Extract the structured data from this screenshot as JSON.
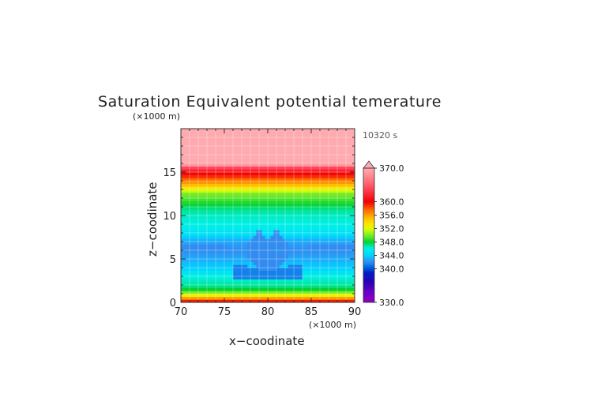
{
  "title": "Saturation Equivalent potential temerature",
  "time_label": "10320 s",
  "chart_data": {
    "type": "heatmap",
    "title": "Saturation Equivalent potential temerature",
    "xlabel": "x−coodinate",
    "ylabel": "z−coodinate",
    "x_unit": "(×1000 m)",
    "y_unit": "(×1000 m)",
    "xlim": [
      70,
      90
    ],
    "ylim": [
      0,
      20
    ],
    "x_ticks": [
      "70",
      "75",
      "80",
      "85",
      "90"
    ],
    "y_ticks": [
      "0",
      "5",
      "10",
      "15"
    ],
    "grid": true,
    "colorbar": {
      "range": [
        330,
        370
      ],
      "tick_labels": [
        "330.0",
        "340.0",
        "344.0",
        "348.0",
        "352.0",
        "356.0",
        "360.0",
        "370.0"
      ],
      "extend": "max"
    },
    "profile_z_km": [
      0,
      0.5,
      1,
      1.5,
      2,
      3,
      4,
      5,
      6,
      7,
      8,
      9,
      10,
      11,
      12,
      12.5,
      13,
      13.5,
      14,
      14.5,
      15,
      15.5,
      16,
      20
    ],
    "profile_theta_K": [
      361,
      356,
      351,
      348,
      347,
      346,
      344,
      343,
      342,
      342.8,
      345,
      346,
      346.5,
      347.5,
      349.5,
      350,
      352.5,
      355,
      357,
      359,
      361,
      364,
      371,
      375
    ],
    "anomaly": {
      "center_x_km": 80,
      "peaks_x_km": [
        79,
        81
      ],
      "peak_height_km": 8.5,
      "dip_height_km": 2.8,
      "value_K": 342
    },
    "dark_band": {
      "z_km": [
        2.6,
        4.3
      ],
      "x_km": [
        76,
        84
      ]
    }
  }
}
